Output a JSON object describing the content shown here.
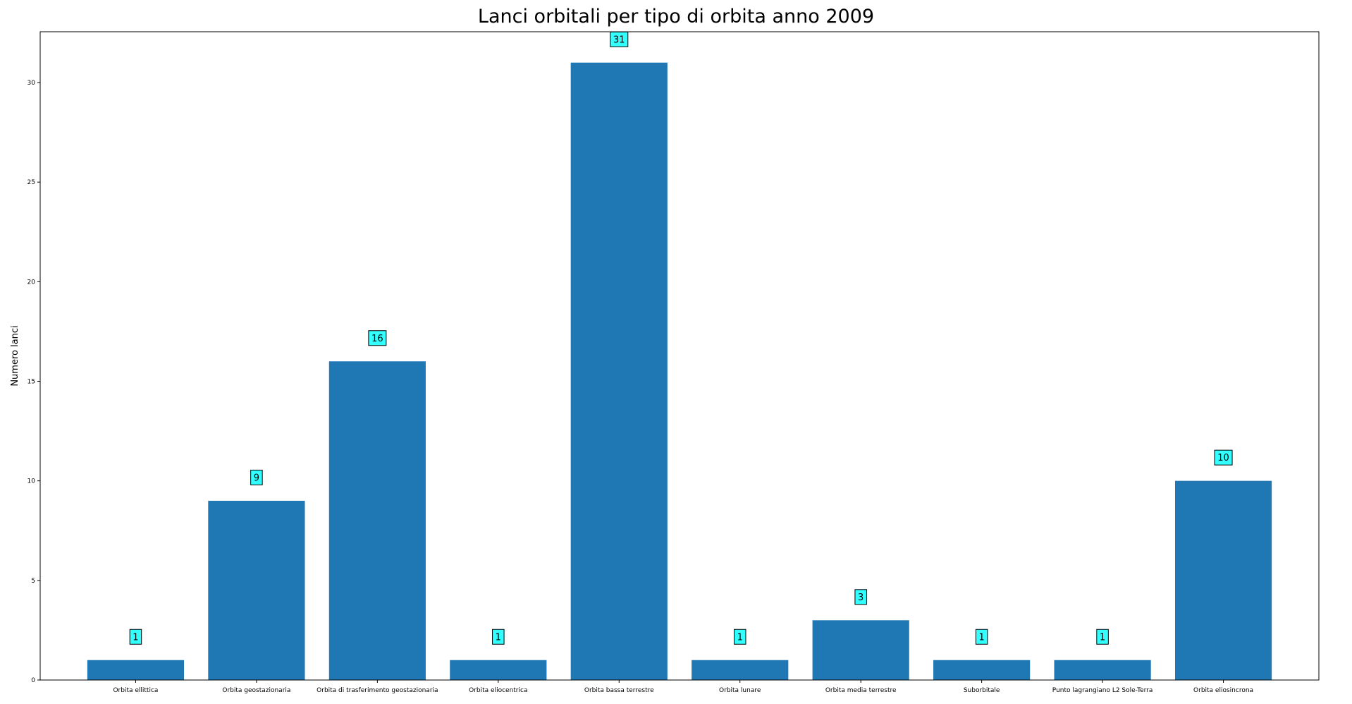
{
  "chart_data": {
    "type": "bar",
    "title": "Lanci orbitali per tipo di orbita anno 2009",
    "xlabel": "",
    "ylabel": "Numero lanci",
    "categories": [
      "Orbita ellittica",
      "Orbita geostazionaria",
      "Orbita di trasferimento geostazionaria",
      "Orbita eliocentrica",
      "Orbita bassa terrestre",
      "Orbita lunare",
      "Orbita media terrestre",
      "Suborbitale",
      "Punto lagrangiano L2 Sole-Terra",
      "Orbita eliosincrona"
    ],
    "values": [
      1,
      9,
      16,
      1,
      31,
      1,
      3,
      1,
      1,
      10
    ],
    "ylim": [
      0,
      32.55
    ],
    "yticks": [
      0,
      5,
      10,
      15,
      20,
      25,
      30
    ],
    "grid": false,
    "legend": "none",
    "bar_color": "#1f77b4",
    "label_box_color": "#33ffff"
  }
}
